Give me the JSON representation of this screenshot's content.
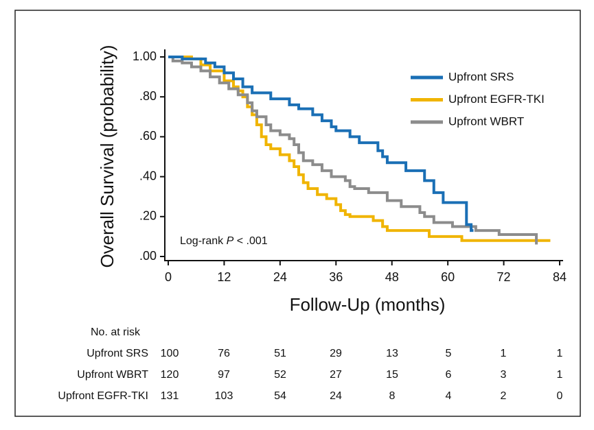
{
  "chart_data": {
    "type": "step",
    "ylabel": "Overall Survival (probability)",
    "xlabel": "Follow-Up (months)",
    "annotation": [
      "Log-rank",
      "P",
      "< .001"
    ],
    "xlim": [
      0,
      84
    ],
    "xticks": [
      0,
      12,
      24,
      36,
      48,
      60,
      72,
      84
    ],
    "ylim": [
      0,
      1
    ],
    "yticks": [
      {
        "value": 0,
        "label": ".00"
      },
      {
        "value": 0.2,
        "label": ".20"
      },
      {
        "value": 0.4,
        "label": ".40"
      },
      {
        "value": 0.6,
        "label": ".60"
      },
      {
        "value": 0.8,
        "label": ".80"
      },
      {
        "value": 1,
        "label": "1.00"
      }
    ],
    "series": [
      {
        "name": "Upfront SRS",
        "color": "#1a6fb5",
        "x": [
          0,
          3,
          8,
          10,
          12,
          14,
          16,
          18,
          22,
          26,
          28,
          31,
          33,
          35,
          36,
          39,
          41,
          45,
          46,
          47,
          51,
          55,
          57,
          59,
          64,
          65,
          65.5
        ],
        "values": [
          1.0,
          0.99,
          0.97,
          0.95,
          0.92,
          0.89,
          0.85,
          0.82,
          0.79,
          0.76,
          0.74,
          0.71,
          0.68,
          0.65,
          0.63,
          0.6,
          0.57,
          0.53,
          0.5,
          0.47,
          0.43,
          0.38,
          0.32,
          0.27,
          0.16,
          0.13,
          0.13
        ]
      },
      {
        "name": "Upfront EGFR-TKI",
        "color": "#f0b400",
        "x": [
          0,
          5,
          7,
          9,
          12,
          14,
          15,
          16,
          17,
          18,
          19,
          20,
          21,
          22,
          24,
          26,
          27,
          28,
          29,
          30,
          32,
          34,
          36,
          37,
          38,
          39,
          44,
          46,
          47,
          56,
          63,
          82
        ],
        "values": [
          1.0,
          0.99,
          0.96,
          0.93,
          0.88,
          0.85,
          0.83,
          0.8,
          0.75,
          0.71,
          0.66,
          0.6,
          0.56,
          0.54,
          0.51,
          0.48,
          0.45,
          0.41,
          0.37,
          0.34,
          0.31,
          0.29,
          0.26,
          0.23,
          0.21,
          0.2,
          0.18,
          0.15,
          0.13,
          0.1,
          0.08,
          0.08
        ]
      },
      {
        "name": "Upfront WBRT",
        "color": "#8c8c8c",
        "x": [
          0,
          1,
          3,
          5,
          7,
          9,
          11,
          13,
          15,
          17,
          18,
          19,
          21,
          22,
          24,
          26,
          27,
          28,
          29,
          31,
          33,
          35,
          38,
          39,
          40,
          43,
          47,
          50,
          54,
          55,
          57,
          61,
          66,
          71,
          79
        ],
        "values": [
          1.0,
          0.98,
          0.97,
          0.95,
          0.93,
          0.9,
          0.87,
          0.84,
          0.81,
          0.77,
          0.73,
          0.7,
          0.66,
          0.63,
          0.61,
          0.59,
          0.56,
          0.52,
          0.48,
          0.46,
          0.43,
          0.4,
          0.38,
          0.35,
          0.34,
          0.32,
          0.28,
          0.25,
          0.22,
          0.2,
          0.17,
          0.15,
          0.13,
          0.11,
          0.06
        ]
      }
    ],
    "risk_table": {
      "title": "No. at risk",
      "rows": [
        {
          "name": "Upfront SRS",
          "values": [
            100,
            76,
            51,
            29,
            13,
            5,
            1,
            1
          ]
        },
        {
          "name": "Upfront WBRT",
          "values": [
            120,
            97,
            52,
            27,
            15,
            6,
            3,
            1
          ]
        },
        {
          "name": "Upfront EGFR-TKI",
          "values": [
            131,
            103,
            54,
            24,
            8,
            4,
            2,
            0
          ]
        }
      ]
    }
  }
}
